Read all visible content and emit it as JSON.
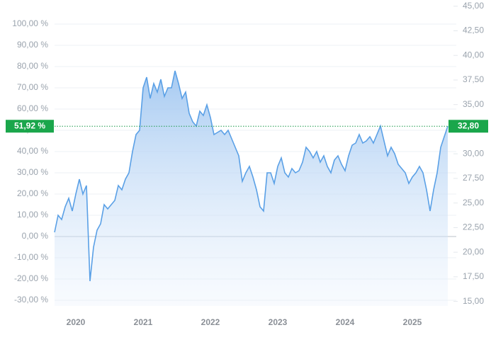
{
  "chart_data": {
    "type": "line",
    "color": "#5aa0e6",
    "categories": [
      null,
      null,
      null,
      null,
      null,
      null,
      "2020",
      null,
      null,
      null,
      null,
      null,
      null,
      null,
      null,
      null,
      null,
      null,
      null,
      null,
      null,
      null,
      null,
      null,
      null,
      "2021",
      null,
      null,
      null,
      null,
      null,
      null,
      null,
      null,
      null,
      null,
      null,
      null,
      null,
      null,
      null,
      null,
      null,
      null,
      "2022",
      null,
      null,
      null,
      null,
      null,
      null,
      null,
      null,
      null,
      null,
      null,
      null,
      null,
      null,
      null,
      null,
      null,
      null,
      "2023",
      null,
      null,
      null,
      null,
      null,
      null,
      null,
      null,
      null,
      null,
      null,
      null,
      null,
      null,
      null,
      null,
      null,
      null,
      "2024",
      null,
      null,
      null,
      null,
      null,
      null,
      null,
      null,
      null,
      null,
      null,
      null,
      null,
      null,
      null,
      null,
      null,
      null,
      "2025",
      null,
      null,
      null,
      null,
      null,
      null,
      null,
      null,
      null,
      null
    ],
    "values": [
      2,
      10,
      8,
      14,
      18,
      12,
      20,
      27,
      20,
      24,
      -21,
      -5,
      3,
      6,
      15,
      13,
      15,
      17,
      24,
      22,
      27,
      30,
      40,
      48,
      50,
      70,
      75,
      65,
      72,
      68,
      74,
      66,
      70,
      70,
      78,
      72,
      65,
      68,
      58,
      54,
      52,
      59,
      57,
      62,
      56,
      48,
      49,
      50,
      48,
      50,
      46,
      42,
      38,
      26,
      30,
      33,
      28,
      22,
      14,
      12,
      30,
      30,
      25,
      33,
      37,
      30,
      28,
      32,
      30,
      31,
      35,
      42,
      40,
      37,
      40,
      35,
      38,
      33,
      30,
      36,
      38,
      34,
      31,
      38,
      43,
      44,
      48,
      44,
      45,
      47,
      44,
      48,
      52,
      45,
      38,
      42,
      39,
      34,
      32,
      30,
      25,
      28,
      30,
      33,
      30,
      22,
      12,
      22,
      30,
      42,
      47,
      51.92
    ],
    "value_labels": [
      null,
      null,
      null,
      null,
      null,
      null,
      null,
      null,
      null,
      null,
      null,
      null,
      null,
      null,
      null,
      null,
      null,
      null,
      null,
      null,
      null,
      null,
      null,
      null,
      null,
      null,
      null,
      null,
      null,
      null,
      null,
      null,
      null,
      null,
      null,
      null,
      null,
      null,
      null,
      null,
      null,
      null,
      null,
      null,
      null,
      null,
      null,
      null,
      null,
      null,
      null,
      null,
      null,
      null,
      null,
      null,
      null,
      null,
      null,
      null,
      null,
      null,
      null,
      null,
      null,
      null,
      null,
      null,
      null,
      null,
      null,
      null,
      null,
      null,
      null,
      null,
      null,
      null,
      null,
      null,
      null,
      null,
      null,
      null,
      null,
      null,
      null,
      null,
      null,
      null,
      null,
      null,
      null,
      null,
      null,
      null,
      null,
      null,
      null,
      null,
      null,
      null,
      null,
      null,
      null,
      null,
      null,
      null,
      null,
      null,
      null,
      "51,92 %"
    ],
    "last_price": {
      "value": 32.8,
      "label": "32,80"
    },
    "ylim": [
      -32.67,
      111.33
    ],
    "yticks": [
      {
        "value": 100,
        "label": "100,00 %"
      },
      {
        "value": 90,
        "label": "90,00 %"
      },
      {
        "value": 80,
        "label": "80,00 %"
      },
      {
        "value": 70,
        "label": "70,00 %"
      },
      {
        "value": 60,
        "label": "60,00 %"
      },
      {
        "value": 50,
        "label": "50,00 %"
      },
      {
        "value": 40,
        "label": "40,00 %"
      },
      {
        "value": 30,
        "label": "30,00 %"
      },
      {
        "value": 20,
        "label": "20,00 %"
      },
      {
        "value": 10,
        "label": "10,00 %"
      },
      {
        "value": 0,
        "label": "0,00 %"
      },
      {
        "value": -10,
        "label": "-10,00 %"
      },
      {
        "value": -20,
        "label": "-20,00 %"
      },
      {
        "value": -30,
        "label": "-30,00 %"
      }
    ],
    "y2lim": [
      14.54,
      45.63
    ],
    "y2ticks": [
      {
        "value": 45,
        "label": "45,00"
      },
      {
        "value": 42.5,
        "label": "42,50"
      },
      {
        "value": 40,
        "label": "40,00"
      },
      {
        "value": 37.5,
        "label": "37,50"
      },
      {
        "value": 35,
        "label": "35,00"
      },
      {
        "value": 32.5,
        "label": "32,50"
      },
      {
        "value": 30,
        "label": "30,00"
      },
      {
        "value": 27.5,
        "label": "27,50"
      },
      {
        "value": 25,
        "label": "25,00"
      },
      {
        "value": 22.5,
        "label": "22,50"
      },
      {
        "value": 20,
        "label": "20,00"
      },
      {
        "value": 17.5,
        "label": "17,50"
      },
      {
        "value": 15,
        "label": "15,00"
      }
    ],
    "grid": true
  }
}
